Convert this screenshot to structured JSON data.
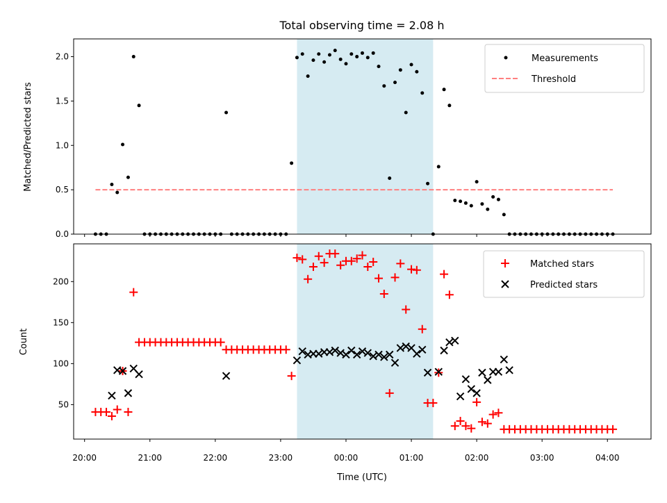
{
  "chart_data": [
    {
      "type": "scatter",
      "title": "Total observing time = 2.08 h",
      "xlabel": "",
      "ylabel": "Matched/Predicted stars",
      "xlim_hours": [
        19.833,
        28.667
      ],
      "ylim": [
        0,
        2.2
      ],
      "yticks": [
        "0.0",
        "0.5",
        "1.0",
        "1.5",
        "2.0"
      ],
      "grid": false,
      "legend_position": "top-right",
      "shaded_span_hours": [
        23.25,
        25.333
      ],
      "shade_color": "#add8e6",
      "series": [
        {
          "name": "Measurements",
          "color": "#000000",
          "marker": "dot",
          "x_hours": [
            20.167,
            20.25,
            20.333,
            20.417,
            20.5,
            20.583,
            20.667,
            20.75,
            20.833,
            20.917,
            21.0,
            21.083,
            21.167,
            21.25,
            21.333,
            21.417,
            21.5,
            21.583,
            21.667,
            21.75,
            21.833,
            21.917,
            22.0,
            22.083,
            22.167,
            22.25,
            22.333,
            22.417,
            22.5,
            22.583,
            22.667,
            22.75,
            22.833,
            22.917,
            23.0,
            23.083,
            23.167,
            23.25,
            23.333,
            23.417,
            23.5,
            23.583,
            23.667,
            23.75,
            23.833,
            23.917,
            24.0,
            24.083,
            24.167,
            24.25,
            24.333,
            24.417,
            24.5,
            24.583,
            24.667,
            24.75,
            24.833,
            24.917,
            25.0,
            25.083,
            25.167,
            25.25,
            25.333,
            25.417,
            25.5,
            25.583,
            25.667,
            25.75,
            25.833,
            25.917,
            26.0,
            26.083,
            26.167,
            26.25,
            26.333,
            26.417,
            26.5,
            26.583,
            26.667,
            26.75,
            26.833,
            26.917,
            27.0,
            27.083,
            27.167,
            27.25,
            27.333,
            27.417,
            27.5,
            27.583,
            27.667,
            27.75,
            27.833,
            27.917,
            28.0,
            28.083
          ],
          "y": [
            0,
            0,
            0,
            0.56,
            0.47,
            1.01,
            0.64,
            2.0,
            1.45,
            0,
            0,
            0,
            0,
            0,
            0,
            0,
            0,
            0,
            0,
            0,
            0,
            0,
            0,
            0,
            1.37,
            0,
            0,
            0,
            0,
            0,
            0,
            0,
            0,
            0,
            0,
            0,
            0.8,
            1.99,
            2.03,
            1.78,
            1.96,
            2.03,
            1.94,
            2.02,
            2.07,
            1.97,
            1.92,
            2.03,
            2.0,
            2.04,
            1.99,
            2.04,
            1.89,
            1.67,
            0.63,
            1.71,
            1.85,
            1.37,
            1.91,
            1.83,
            1.59,
            0.57,
            0,
            0.76,
            1.63,
            1.45,
            0.38,
            0.37,
            0.35,
            0.32,
            0.59,
            0.34,
            0.28,
            0.42,
            0.39,
            0.22,
            0,
            0,
            0,
            0,
            0,
            0,
            0,
            0,
            0,
            0,
            0,
            0,
            0,
            0,
            0,
            0,
            0,
            0,
            0,
            0
          ]
        },
        {
          "name": "Threshold",
          "color": "#ff7f7f",
          "style": "dashed",
          "x_hours": [
            20.167,
            28.083
          ],
          "y": [
            0.5,
            0.5
          ]
        }
      ]
    },
    {
      "type": "scatter",
      "title": "",
      "xlabel": "Time (UTC)",
      "ylabel": "Count",
      "xlim_hours": [
        19.833,
        28.667
      ],
      "ylim": [
        8,
        246
      ],
      "yticks": [
        "50",
        "100",
        "150",
        "200"
      ],
      "xticks": [
        {
          "hour": 20,
          "label": "20:00"
        },
        {
          "hour": 21,
          "label": "21:00"
        },
        {
          "hour": 22,
          "label": "22:00"
        },
        {
          "hour": 23,
          "label": "23:00"
        },
        {
          "hour": 24,
          "label": "00:00"
        },
        {
          "hour": 25,
          "label": "01:00"
        },
        {
          "hour": 26,
          "label": "02:00"
        },
        {
          "hour": 27,
          "label": "03:00"
        },
        {
          "hour": 28,
          "label": "04:00"
        }
      ],
      "grid": false,
      "legend_position": "top-right",
      "shaded_span_hours": [
        23.25,
        25.333
      ],
      "series": [
        {
          "name": "Matched stars",
          "color": "#ff0000",
          "marker": "plus",
          "x_hours": [
            20.167,
            20.25,
            20.333,
            20.417,
            20.5,
            20.583,
            20.667,
            20.75,
            20.833,
            20.917,
            21.0,
            21.083,
            21.167,
            21.25,
            21.333,
            21.417,
            21.5,
            21.583,
            21.667,
            21.75,
            21.833,
            21.917,
            22.0,
            22.083,
            22.167,
            22.25,
            22.333,
            22.417,
            22.5,
            22.583,
            22.667,
            22.75,
            22.833,
            22.917,
            23.0,
            23.083,
            23.167,
            23.25,
            23.333,
            23.417,
            23.5,
            23.583,
            23.667,
            23.75,
            23.833,
            23.917,
            24.0,
            24.083,
            24.167,
            24.25,
            24.333,
            24.417,
            24.5,
            24.583,
            24.667,
            24.75,
            24.833,
            24.917,
            25.0,
            25.083,
            25.167,
            25.25,
            25.333,
            25.417,
            25.5,
            25.583,
            25.667,
            25.75,
            25.833,
            25.917,
            26.0,
            26.083,
            26.167,
            26.25,
            26.333,
            26.417,
            26.5,
            26.583,
            26.667,
            26.75,
            26.833,
            26.917,
            27.0,
            27.083,
            27.167,
            27.25,
            27.333,
            27.417,
            27.5,
            27.583,
            27.667,
            27.75,
            27.833,
            27.917,
            28.0,
            28.083
          ],
          "y": [
            41,
            41,
            41,
            36,
            44,
            91,
            41,
            187,
            126,
            126,
            126,
            126,
            126,
            126,
            126,
            126,
            126,
            126,
            126,
            126,
            126,
            126,
            126,
            126,
            117,
            117,
            117,
            117,
            117,
            117,
            117,
            117,
            117,
            117,
            117,
            117,
            85,
            229,
            227,
            203,
            218,
            231,
            223,
            234,
            234,
            220,
            225,
            225,
            228,
            232,
            218,
            224,
            204,
            185,
            64,
            205,
            222,
            166,
            215,
            214,
            142,
            52,
            52,
            89,
            209,
            184,
            24,
            30,
            24,
            21,
            53,
            29,
            27,
            38,
            40,
            20,
            20,
            20,
            20,
            20,
            20,
            20,
            20,
            20,
            20,
            20,
            20,
            20,
            20,
            20,
            20,
            20,
            20,
            20,
            20,
            20
          ]
        },
        {
          "name": "Predicted stars",
          "color": "#000000",
          "marker": "x",
          "x_hours": [
            20.417,
            20.5,
            20.583,
            20.667,
            20.75,
            20.833,
            22.167,
            23.25,
            23.333,
            23.417,
            23.5,
            23.583,
            23.667,
            23.75,
            23.833,
            23.917,
            24.0,
            24.083,
            24.167,
            24.25,
            24.333,
            24.417,
            24.5,
            24.583,
            24.667,
            24.75,
            24.833,
            24.917,
            25.0,
            25.083,
            25.167,
            25.25,
            25.417,
            25.5,
            25.583,
            25.667,
            25.75,
            25.833,
            25.917,
            26.0,
            26.083,
            26.167,
            26.25,
            26.333,
            26.417,
            26.5
          ],
          "y": [
            61,
            92,
            91,
            64,
            94,
            87,
            85,
            104,
            115,
            111,
            112,
            112,
            114,
            114,
            116,
            113,
            111,
            116,
            111,
            115,
            113,
            109,
            111,
            108,
            111,
            101,
            119,
            121,
            119,
            112,
            117,
            89,
            90,
            116,
            126,
            128,
            60,
            81,
            69,
            64,
            89,
            80,
            90,
            90,
            105,
            92
          ]
        }
      ]
    }
  ]
}
